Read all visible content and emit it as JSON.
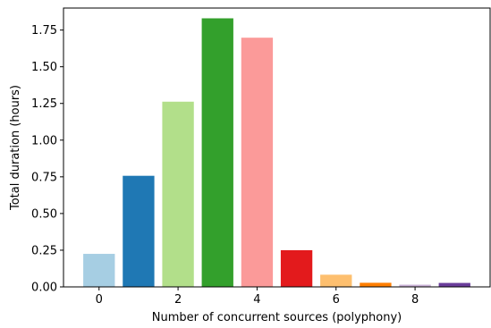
{
  "chart_data": {
    "type": "bar",
    "x": [
      0,
      1,
      2,
      3,
      4,
      5,
      6,
      7,
      8,
      9
    ],
    "values": [
      0.225,
      0.757,
      1.262,
      1.83,
      1.698,
      0.25,
      0.083,
      0.028,
      0.015,
      0.027
    ],
    "colors": [
      "#a6cee3",
      "#1f78b4",
      "#b2df8a",
      "#33a02c",
      "#fb9a99",
      "#e31a1c",
      "#fdbf6f",
      "#ff7f00",
      "#cab2d6",
      "#6a3d9a"
    ],
    "title": "",
    "xlabel": "Number of concurrent sources (polyphony)",
    "ylabel": "Total duration (hours)",
    "xticks": [
      "0",
      "2",
      "4",
      "6",
      "8"
    ],
    "yticks": [
      "0.00",
      "0.25",
      "0.50",
      "0.75",
      "1.00",
      "1.25",
      "1.50",
      "1.75"
    ],
    "ylim": [
      0,
      1.9
    ],
    "xlim": [
      -0.9,
      9.9
    ],
    "grid": false
  }
}
